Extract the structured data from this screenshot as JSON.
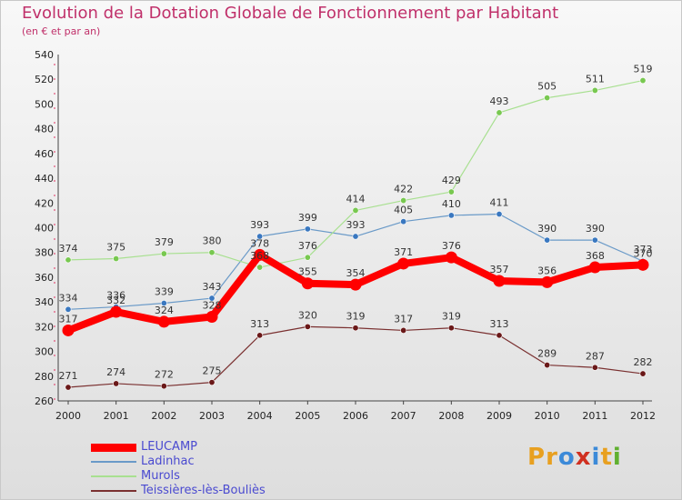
{
  "title": "Evolution de la Dotation Globale de Fonctionnement par Habitant",
  "subtitle": "(en € et par an)",
  "logo": {
    "letters": [
      "P",
      "r",
      "o",
      "x",
      "i",
      "t",
      "i"
    ],
    "colors": [
      "#e8a020",
      "#e8a020",
      "#3c8ad8",
      "#d03020",
      "#3c8ad8",
      "#e8a020",
      "#60b030"
    ]
  },
  "chart_data": {
    "type": "line",
    "title": "Evolution de la Dotation Globale de Fonctionnement par Habitant",
    "subtitle": "(en € et par an)",
    "x": [
      "2000",
      "2001",
      "2002",
      "2003",
      "2004",
      "2005",
      "2006",
      "2007",
      "2008",
      "2009",
      "2010",
      "2011",
      "2012"
    ],
    "ylim": [
      260,
      540
    ],
    "yticks": [
      260,
      280,
      300,
      320,
      340,
      360,
      380,
      400,
      420,
      440,
      460,
      480,
      500,
      520,
      540
    ],
    "grid": false,
    "legend": "bottom-left",
    "series": [
      {
        "name": "LEUCAMP",
        "color": "#ff0000",
        "width": 8,
        "values": [
          317,
          332,
          324,
          328,
          378,
          355,
          354,
          371,
          376,
          357,
          356,
          368,
          370
        ]
      },
      {
        "name": "Ladinhac",
        "color": "#6a9ac8",
        "marker": "#3a78c0",
        "width": 1.2,
        "values": [
          334,
          336,
          339,
          343,
          393,
          399,
          393,
          405,
          410,
          411,
          390,
          390,
          373
        ]
      },
      {
        "name": "Murols",
        "color": "#a8e090",
        "marker": "#78c850",
        "width": 1.2,
        "values": [
          374,
          375,
          379,
          380,
          368,
          376,
          414,
          422,
          429,
          493,
          505,
          511,
          519
        ]
      },
      {
        "name": "Teissières-lès-Bouliès",
        "color": "#7a3030",
        "marker": "#6a1818",
        "width": 1.2,
        "values": [
          271,
          274,
          272,
          275,
          313,
          320,
          319,
          317,
          319,
          313,
          289,
          287,
          282
        ]
      }
    ]
  }
}
